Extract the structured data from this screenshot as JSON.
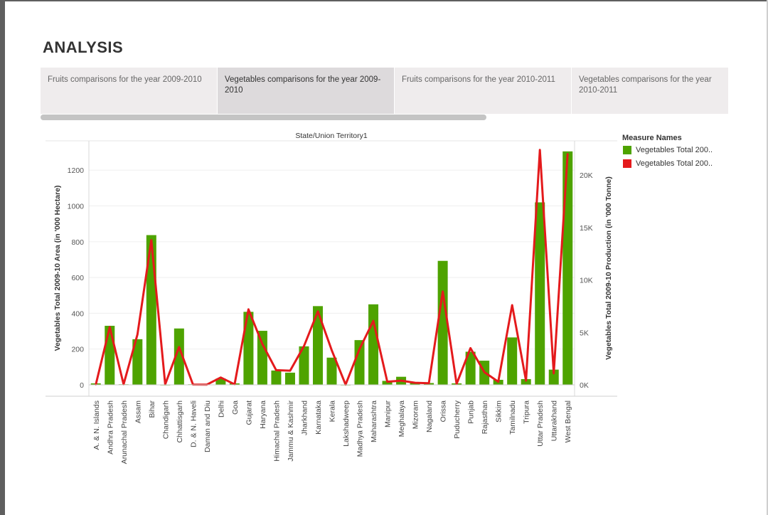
{
  "page": {
    "title": "ANALYSIS"
  },
  "tabs": [
    {
      "label": "Fruits comparisons for the year 2009-2010",
      "active": false
    },
    {
      "label": "Vegetables comparisons for the year 2009-2010",
      "active": true
    },
    {
      "label": "Fruits comparisons for the year 2010-2011",
      "active": false
    },
    {
      "label": "Vegetables comparisons for the year 2010-2011",
      "active": false
    }
  ],
  "legend": {
    "title": "Measure Names",
    "items": [
      {
        "label": "Vegetables Total 200..",
        "color": "#4ea300"
      },
      {
        "label": "Vegetables Total 200..",
        "color": "#e41a1c"
      }
    ]
  },
  "chart_data": {
    "type": "bar",
    "title": "State/Union Territory1",
    "ylabel": "Vegetables Total 2009-10 Area (in '000 Hectare)",
    "y2label": "Vegetables Total 2009-10 Production (in '000 Tonne)",
    "ylim": [
      0,
      1360
    ],
    "y2lim": [
      0,
      23200
    ],
    "yticks": [
      0,
      200,
      400,
      600,
      800,
      1000,
      1200
    ],
    "y2ticks": [
      {
        "value": 0,
        "label": "0K"
      },
      {
        "value": 5000,
        "label": "5K"
      },
      {
        "value": 10000,
        "label": "10K"
      },
      {
        "value": 15000,
        "label": "15K"
      },
      {
        "value": 20000,
        "label": "20K"
      }
    ],
    "grid": true,
    "categories": [
      "A. & N. Islands",
      "Andhra Pradesh",
      "Arunachal Pradesh",
      "Assam",
      "Bihar",
      "Chandigarh",
      "Chhattisgarh",
      "D. & N. Haveli",
      "Daman and Diu",
      "Delhi",
      "Goa",
      "Gujarat",
      "Haryana",
      "Himachal Pradesh",
      "Jammu & Kashmir",
      "Jharkhand",
      "Karnataka",
      "Kerala",
      "Lakshadweep",
      "Madhya Pradesh",
      "Maharashtra",
      "Manipur",
      "Meghalaya",
      "Mizoram",
      "Nagaland",
      "Orissa",
      "Puducherry",
      "Punjab",
      "Rajasthan",
      "Sikkim",
      "Tamilnadu",
      "Tripura",
      "Uttar Pradesh",
      "Uttarakhand",
      "West Bengal"
    ],
    "series": [
      {
        "axis": "left",
        "type": "bar",
        "color": "#4ea300",
        "values": [
          8,
          330,
          3,
          255,
          837,
          1,
          315,
          3,
          2,
          35,
          8,
          408,
          302,
          80,
          68,
          215,
          440,
          152,
          1,
          250,
          450,
          22,
          45,
          12,
          10,
          693,
          8,
          185,
          135,
          28,
          265,
          32,
          1020,
          85,
          1305
        ]
      },
      {
        "axis": "right",
        "type": "line",
        "color": "#e41a1c",
        "values": [
          40,
          5500,
          50,
          4800,
          13800,
          50,
          3600,
          30,
          20,
          700,
          50,
          7200,
          3900,
          1400,
          1350,
          3700,
          7000,
          3300,
          20,
          3400,
          6100,
          300,
          400,
          200,
          150,
          8900,
          90,
          3500,
          1200,
          300,
          7600,
          400,
          22400,
          1100,
          22000
        ]
      }
    ]
  }
}
